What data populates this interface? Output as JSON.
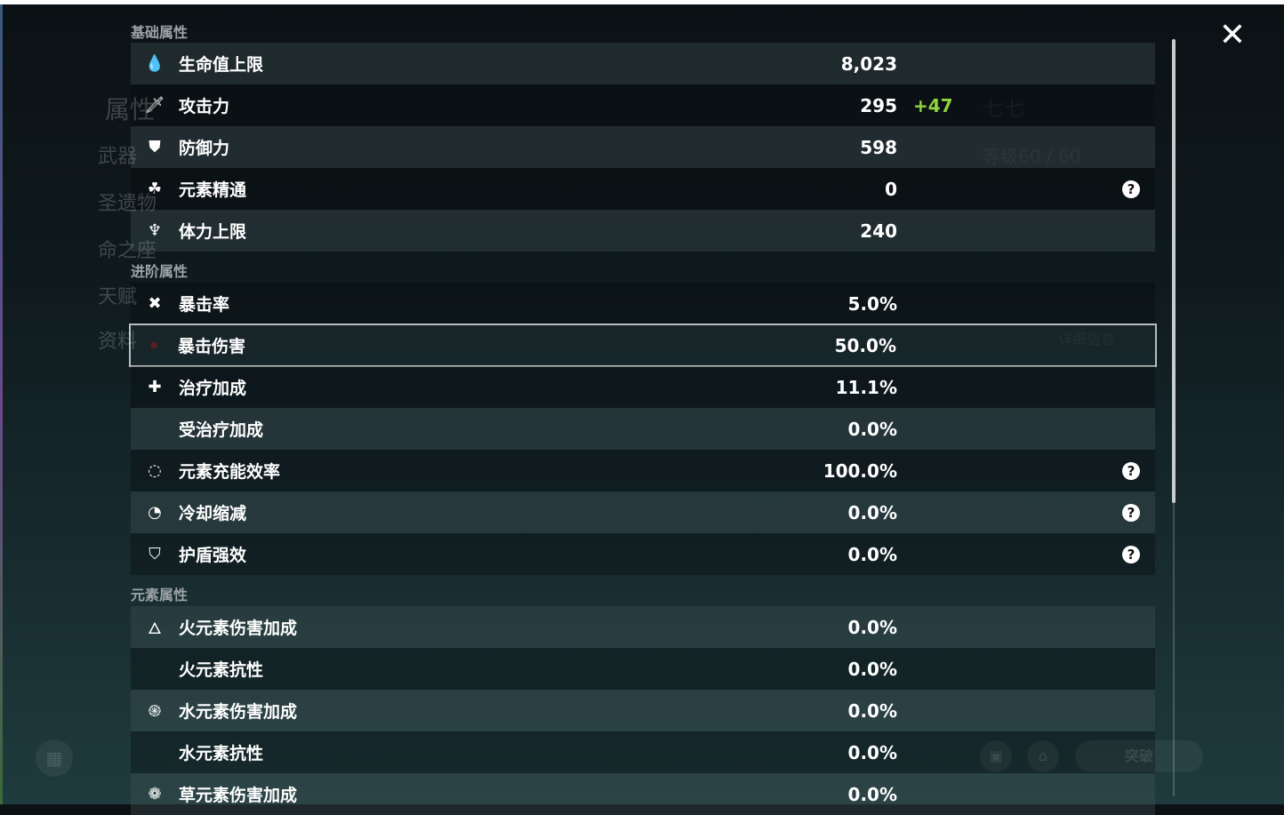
{
  "background": {
    "character_name": "七七",
    "level": "等级60 / 60",
    "detail_button": "详细信息",
    "break_button": "突破",
    "left_menu": [
      "属性",
      "武器",
      "圣遗物",
      "命之座",
      "天赋",
      "资料"
    ]
  },
  "sections": [
    {
      "title": "基础属性",
      "rows": [
        {
          "icon": "hp-drop-icon",
          "glyph": "💧",
          "label": "生命值上限",
          "value": "8,023"
        },
        {
          "icon": "sword-icon",
          "glyph": "🗡",
          "label": "攻击力",
          "value": "295",
          "bonus": "+47"
        },
        {
          "icon": "shield-icon",
          "glyph": "⛊",
          "label": "防御力",
          "value": "598"
        },
        {
          "icon": "elemental-mastery-icon",
          "glyph": "☘",
          "label": "元素精通",
          "value": "0",
          "help": "?"
        },
        {
          "icon": "stamina-icon",
          "glyph": "♆",
          "label": "体力上限",
          "value": "240"
        }
      ]
    },
    {
      "title": "进阶属性",
      "rows": [
        {
          "icon": "crit-rate-icon",
          "glyph": "✖",
          "label": "暴击率",
          "value": "5.0%"
        },
        {
          "icon": "crit-dmg-icon",
          "glyph": "",
          "label": "暴击伤害",
          "value": "50.0%",
          "selected": true
        },
        {
          "icon": "healing-cross-icon",
          "glyph": "✚",
          "label": "治疗加成",
          "value": "11.1%"
        },
        {
          "icon": "",
          "glyph": "",
          "label": "受治疗加成",
          "value": "0.0%"
        },
        {
          "icon": "energy-recharge-icon",
          "glyph": "◌",
          "label": "元素充能效率",
          "value": "100.0%",
          "help": "?"
        },
        {
          "icon": "cooldown-icon",
          "glyph": "◔",
          "label": "冷却缩减",
          "value": "0.0%",
          "help": "?"
        },
        {
          "icon": "shield-strength-icon",
          "glyph": "⛉",
          "label": "护盾强效",
          "value": "0.0%",
          "help": "?"
        }
      ]
    },
    {
      "title": "元素属性",
      "rows": [
        {
          "icon": "pyro-icon",
          "glyph": "🜂",
          "label": "火元素伤害加成",
          "value": "0.0%"
        },
        {
          "icon": "",
          "glyph": "",
          "label": "火元素抗性",
          "value": "0.0%"
        },
        {
          "icon": "hydro-icon",
          "glyph": "֍",
          "label": "水元素伤害加成",
          "value": "0.0%"
        },
        {
          "icon": "",
          "glyph": "",
          "label": "水元素抗性",
          "value": "0.0%"
        },
        {
          "icon": "dendro-icon",
          "glyph": "❁",
          "label": "草元素伤害加成",
          "value": "0.0%"
        }
      ]
    }
  ],
  "close_label": "✕"
}
